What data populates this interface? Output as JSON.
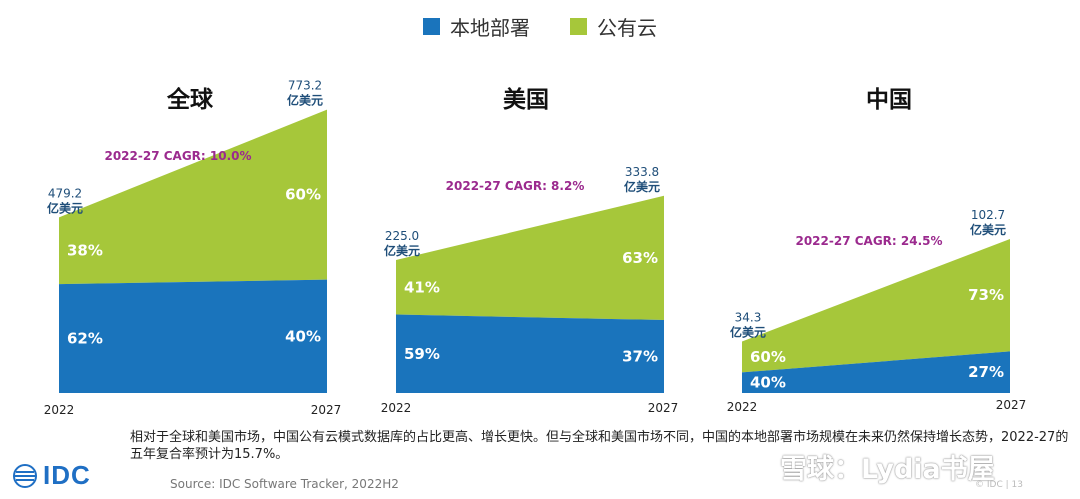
{
  "legend": [
    {
      "label": "本地部署",
      "color": "#1a74bc"
    },
    {
      "label": "公有云",
      "color": "#a6c73a"
    }
  ],
  "chart_data": [
    {
      "type": "area",
      "title": "全球",
      "x": [
        "2022",
        "2027"
      ],
      "totals": [
        479.2,
        773.2
      ],
      "total_labels": [
        "479.2",
        "773.2"
      ],
      "unit": "亿美元",
      "series": [
        {
          "name": "本地部署",
          "percent": [
            62,
            40
          ],
          "percent_labels": [
            "62%",
            "40%"
          ]
        },
        {
          "name": "公有云",
          "percent": [
            38,
            60
          ],
          "percent_labels": [
            "38%",
            "60%"
          ]
        }
      ],
      "cagr": "2022-27 CAGR: 10.0%"
    },
    {
      "type": "area",
      "title": "美国",
      "x": [
        "2022",
        "2027"
      ],
      "totals": [
        225.0,
        333.8
      ],
      "total_labels": [
        "225.0",
        "333.8"
      ],
      "unit": "亿美元",
      "series": [
        {
          "name": "本地部署",
          "percent": [
            59,
            37
          ],
          "percent_labels": [
            "59%",
            "37%"
          ]
        },
        {
          "name": "公有云",
          "percent": [
            41,
            63
          ],
          "percent_labels": [
            "41%",
            "63%"
          ]
        }
      ],
      "cagr": "2022-27 CAGR: 8.2%"
    },
    {
      "type": "area",
      "title": "中国",
      "x": [
        "2022",
        "2027"
      ],
      "totals": [
        34.3,
        102.7
      ],
      "total_labels": [
        "34.3",
        "102.7"
      ],
      "unit": "亿美元",
      "series": [
        {
          "name": "本地部署",
          "percent": [
            40,
            27
          ],
          "percent_labels": [
            "40%",
            "27%"
          ]
        },
        {
          "name": "公有云",
          "percent": [
            60,
            73
          ],
          "percent_labels": [
            "60%",
            "73%"
          ]
        }
      ],
      "cagr": "2022-27 CAGR: 24.5%"
    }
  ],
  "footnote": "相对于全球和美国市场，中国公有云模式数据库的占比更高、增长更快。但与全球和美国市场不同，中国的本地部署市场规模在未来仍然保持增长态势，2022-27的五年复合率预计为15.7%。",
  "source": "Source: IDC Software Tracker, 2022H2",
  "logo_text": "IDC",
  "watermark": "雪球：Lydia书屋",
  "page_mark": "© IDC | 13"
}
